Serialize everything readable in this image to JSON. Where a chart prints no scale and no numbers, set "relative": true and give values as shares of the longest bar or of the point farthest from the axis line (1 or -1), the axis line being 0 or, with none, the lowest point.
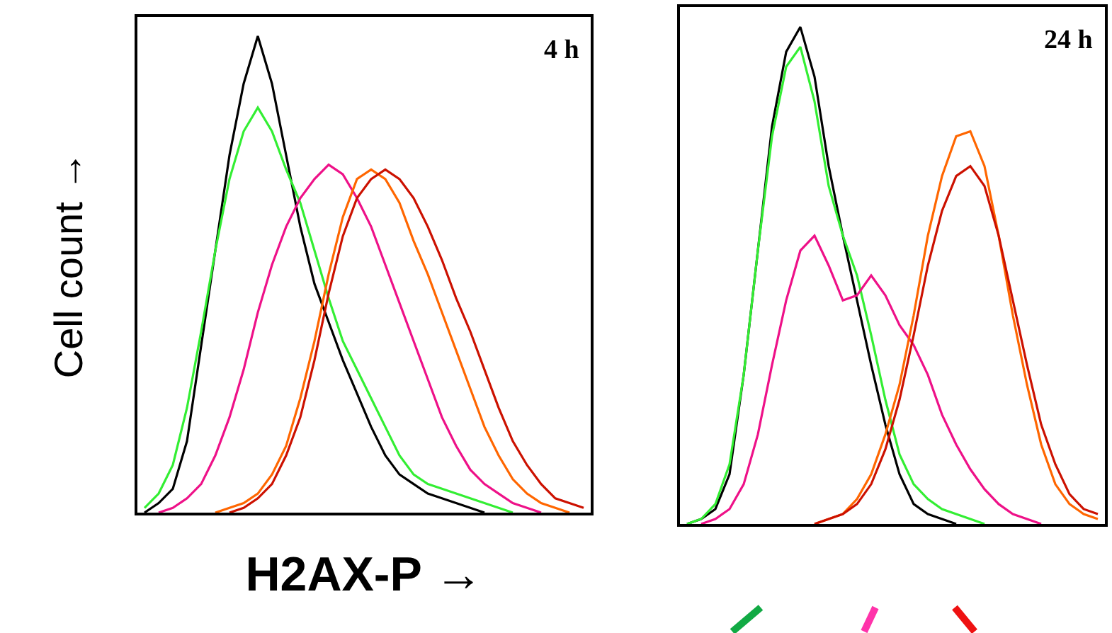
{
  "chart_data": [
    {
      "type": "line",
      "relative": true,
      "ylabel": "Cell count →",
      "xlabel": "H2AX-P →",
      "annotations": [
        "4 h"
      ],
      "categories": [
        null,
        null,
        null,
        null,
        null,
        null,
        null,
        null,
        null,
        null,
        null,
        null,
        null,
        null,
        null,
        null,
        null,
        null,
        null,
        null,
        null,
        null,
        null,
        null,
        null,
        null,
        null,
        null,
        null,
        null,
        null,
        null
      ],
      "series": [
        {
          "color": "#000000",
          "values": [
            0,
            0.02,
            0.05,
            0.15,
            0.35,
            0.55,
            0.75,
            0.9,
            1.0,
            0.9,
            0.75,
            0.6,
            0.48,
            0.4,
            0.32,
            0.25,
            0.18,
            0.12,
            0.08,
            0.06,
            0.04,
            0.03,
            0.02,
            0.01,
            0,
            null,
            null,
            null,
            null,
            null,
            null,
            null
          ]
        },
        {
          "color": "#33ee33",
          "values": [
            0.01,
            0.04,
            0.1,
            0.22,
            0.38,
            0.55,
            0.7,
            0.8,
            0.85,
            0.8,
            0.72,
            0.65,
            0.55,
            0.45,
            0.36,
            0.3,
            0.24,
            0.18,
            0.12,
            0.08,
            0.06,
            0.05,
            0.04,
            0.03,
            0.02,
            0.01,
            0,
            null,
            null,
            null,
            null,
            null
          ]
        },
        {
          "color": "#ee1188",
          "values": [
            null,
            0,
            0.01,
            0.03,
            0.06,
            0.12,
            0.2,
            0.3,
            0.42,
            0.52,
            0.6,
            0.66,
            0.7,
            0.73,
            0.71,
            0.66,
            0.6,
            0.52,
            0.44,
            0.36,
            0.28,
            0.2,
            0.14,
            0.09,
            0.06,
            0.04,
            0.02,
            0.01,
            0,
            null,
            null,
            null
          ]
        },
        {
          "color": "#ff6600",
          "values": [
            null,
            null,
            null,
            null,
            null,
            0,
            0.01,
            0.02,
            0.04,
            0.08,
            0.14,
            0.24,
            0.36,
            0.5,
            0.62,
            0.7,
            0.72,
            0.7,
            0.65,
            0.57,
            0.5,
            0.42,
            0.34,
            0.26,
            0.18,
            0.12,
            0.07,
            0.04,
            0.02,
            0.01,
            0,
            null
          ]
        },
        {
          "color": "#cc1100",
          "values": [
            null,
            null,
            null,
            null,
            null,
            null,
            0,
            0.01,
            0.03,
            0.06,
            0.12,
            0.2,
            0.32,
            0.46,
            0.58,
            0.66,
            0.7,
            0.72,
            0.7,
            0.66,
            0.6,
            0.53,
            0.45,
            0.38,
            0.3,
            0.22,
            0.15,
            0.1,
            0.06,
            0.03,
            0.02,
            0.01
          ]
        }
      ]
    },
    {
      "type": "line",
      "relative": true,
      "annotations": [
        "24 h"
      ],
      "categories": [
        null,
        null,
        null,
        null,
        null,
        null,
        null,
        null,
        null,
        null,
        null,
        null,
        null,
        null,
        null,
        null,
        null,
        null,
        null,
        null,
        null,
        null,
        null,
        null,
        null,
        null,
        null,
        null,
        null,
        null
      ],
      "series": [
        {
          "color": "#000000",
          "values": [
            0,
            0.01,
            0.03,
            0.1,
            0.3,
            0.55,
            0.8,
            0.95,
            1.0,
            0.9,
            0.72,
            0.58,
            0.45,
            0.32,
            0.2,
            0.1,
            0.04,
            0.02,
            0.01,
            0,
            null,
            null,
            null,
            null,
            null,
            null,
            null,
            null,
            null,
            null
          ]
        },
        {
          "color": "#33ee33",
          "values": [
            0,
            0.01,
            0.04,
            0.12,
            0.3,
            0.55,
            0.78,
            0.92,
            0.96,
            0.85,
            0.68,
            0.58,
            0.5,
            0.38,
            0.25,
            0.14,
            0.08,
            0.05,
            0.03,
            0.02,
            0.01,
            0,
            null,
            null,
            null,
            null,
            null,
            null,
            null,
            null
          ]
        },
        {
          "color": "#ee1188",
          "values": [
            null,
            0,
            0.01,
            0.03,
            0.08,
            0.18,
            0.32,
            0.45,
            0.55,
            0.58,
            0.52,
            0.45,
            0.46,
            0.5,
            0.46,
            0.4,
            0.36,
            0.3,
            0.22,
            0.16,
            0.11,
            0.07,
            0.04,
            0.02,
            0.01,
            0,
            null,
            null,
            null,
            null
          ]
        },
        {
          "color": "#ff6600",
          "values": [
            null,
            null,
            null,
            null,
            null,
            null,
            null,
            null,
            null,
            0,
            0.01,
            0.02,
            0.05,
            0.1,
            0.18,
            0.28,
            0.42,
            0.58,
            0.7,
            0.78,
            0.79,
            0.72,
            0.58,
            0.42,
            0.28,
            0.16,
            0.08,
            0.04,
            0.02,
            0.01
          ]
        },
        {
          "color": "#cc1100",
          "values": [
            null,
            null,
            null,
            null,
            null,
            null,
            null,
            null,
            null,
            0,
            0.01,
            0.02,
            0.04,
            0.08,
            0.15,
            0.25,
            0.38,
            0.52,
            0.63,
            0.7,
            0.72,
            0.68,
            0.58,
            0.45,
            0.32,
            0.2,
            0.12,
            0.06,
            0.03,
            0.02
          ]
        }
      ]
    }
  ]
}
